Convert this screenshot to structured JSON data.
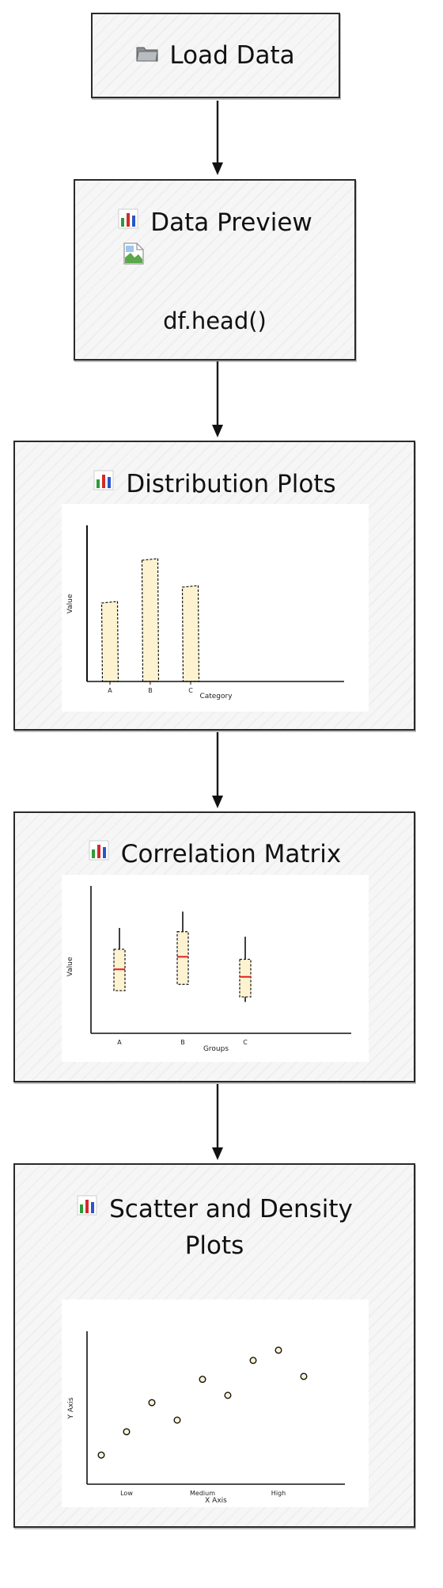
{
  "nodes": {
    "load": {
      "title": "Load Data",
      "icon": "folder-icon"
    },
    "preview": {
      "title": "Data Preview",
      "icon": "bar-chart-icon",
      "image_icon": "broken-image-icon",
      "code": "df.head()"
    },
    "distribution": {
      "title": "Distribution Plots",
      "icon": "bar-chart-icon"
    },
    "correlation": {
      "title": "Correlation Matrix",
      "icon": "bar-chart-icon"
    },
    "scatter": {
      "title_line1": "Scatter and Density",
      "title_line2": "Plots",
      "icon": "bar-chart-icon"
    }
  },
  "colors": {
    "border": "#2a2a2a",
    "node_fill": "#f6f6f6",
    "bar_fill": "#fdf3d1",
    "median": "#e02020",
    "point_fill": "#fdf3d1"
  },
  "chart_data": [
    {
      "type": "bar",
      "categories": [
        "A",
        "B",
        "C"
      ],
      "values": [
        5,
        7.7,
        6
      ],
      "xlabel": "Category",
      "ylabel": "Value",
      "ylim": [
        0,
        10
      ]
    },
    {
      "type": "box",
      "categories": [
        "A",
        "B",
        "C"
      ],
      "series": [
        {
          "category": "A",
          "whisker_low": 3.4,
          "q1": 3.4,
          "median": 5.1,
          "q3": 6.7,
          "whisker_high": 8.4
        },
        {
          "category": "B",
          "whisker_low": 3.9,
          "q1": 3.9,
          "median": 6.1,
          "q3": 8.1,
          "whisker_high": 9.7
        },
        {
          "category": "C",
          "whisker_low": 2.5,
          "q1": 2.9,
          "median": 4.5,
          "q3": 5.9,
          "whisker_high": 7.7
        }
      ],
      "xlabel": "Groups",
      "ylabel": "Value",
      "ylim": [
        0,
        12
      ]
    },
    {
      "type": "scatter",
      "x_tick_labels": [
        "Low",
        "Medium",
        "High"
      ],
      "x_tick_positions": [
        2,
        5,
        8
      ],
      "points": [
        {
          "x": 1,
          "y": 2
        },
        {
          "x": 2,
          "y": 3.6
        },
        {
          "x": 3,
          "y": 5.6
        },
        {
          "x": 4,
          "y": 4.4
        },
        {
          "x": 5,
          "y": 7.2
        },
        {
          "x": 6,
          "y": 6.1
        },
        {
          "x": 7,
          "y": 8.5
        },
        {
          "x": 8,
          "y": 9.2
        },
        {
          "x": 9,
          "y": 7.4
        }
      ],
      "xlabel": "X Axis",
      "ylabel": "Y Axis",
      "xlim": [
        0,
        10
      ],
      "ylim": [
        0,
        10.5
      ]
    }
  ]
}
